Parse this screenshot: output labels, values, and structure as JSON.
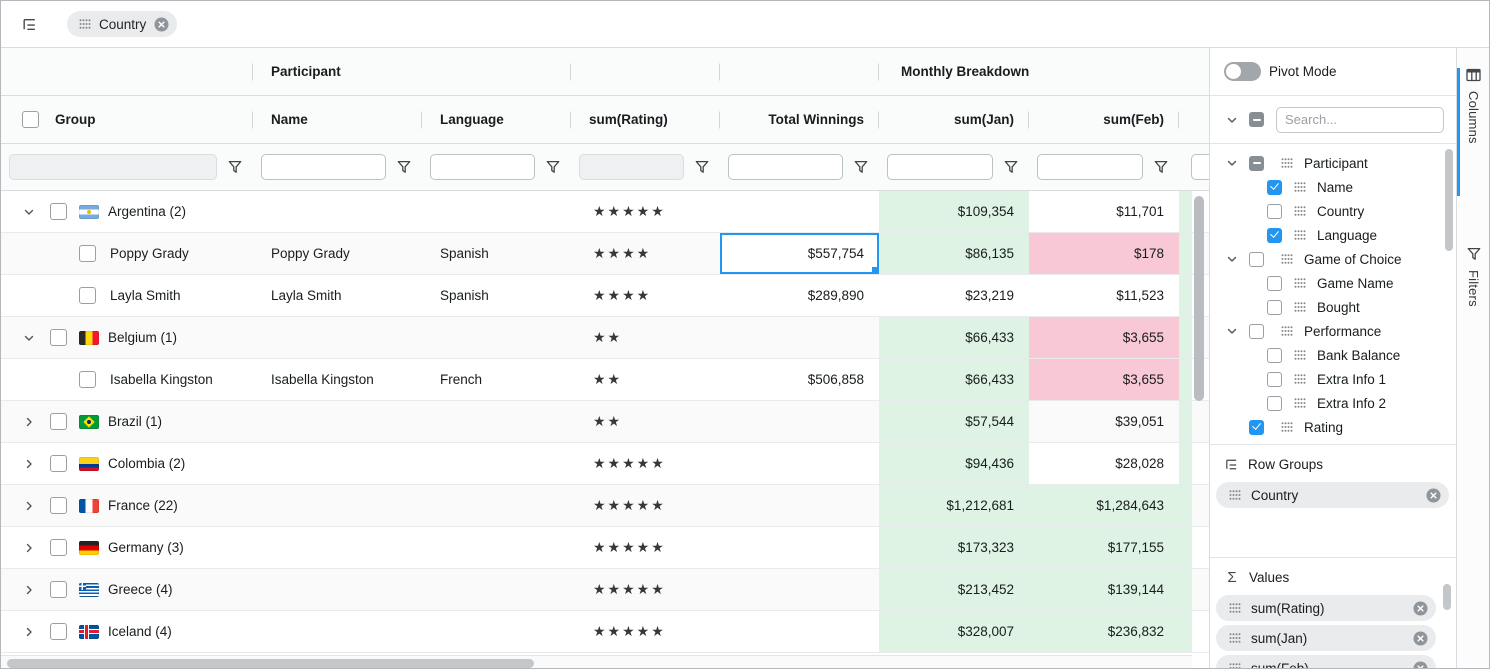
{
  "toolbar": {
    "group_chip": "Country"
  },
  "grid": {
    "group_headers": {
      "participant": "Participant",
      "monthly": "Monthly Breakdown"
    },
    "columns": {
      "group": "Group",
      "name": "Name",
      "language": "Language",
      "rating": "sum(Rating)",
      "total": "Total Winnings",
      "jan": "sum(Jan)",
      "feb": "sum(Feb)"
    },
    "rows": [
      {
        "type": "group",
        "expanded": true,
        "flag": "argentina",
        "label": "Argentina (2)",
        "stars": "★★★★★",
        "name": "",
        "language": "",
        "total": "",
        "jan": "$109,354",
        "feb": "$11,701",
        "jan_bg": "green",
        "feb_bg": "plain"
      },
      {
        "type": "child",
        "label": "Poppy Grady",
        "name": "Poppy Grady",
        "language": "Spanish",
        "stars": "★★★★",
        "total": "$557,754",
        "total_selected": true,
        "jan": "$86,135",
        "feb": "$178",
        "jan_bg": "green",
        "feb_bg": "pink"
      },
      {
        "type": "child",
        "label": "Layla Smith",
        "name": "Layla Smith",
        "language": "Spanish",
        "stars": "★★★★",
        "total": "$289,890",
        "jan": "$23,219",
        "feb": "$11,523",
        "jan_bg": "plain",
        "feb_bg": "plain"
      },
      {
        "type": "group",
        "expanded": true,
        "flag": "belgium",
        "label": "Belgium (1)",
        "stars": "★★",
        "name": "",
        "language": "",
        "total": "",
        "jan": "$66,433",
        "feb": "$3,655",
        "jan_bg": "green",
        "feb_bg": "pink"
      },
      {
        "type": "child",
        "label": "Isabella Kingston",
        "name": "Isabella Kingston",
        "language": "French",
        "stars": "★★",
        "total": "$506,858",
        "jan": "$66,433",
        "feb": "$3,655",
        "jan_bg": "green",
        "feb_bg": "pink"
      },
      {
        "type": "group",
        "expanded": false,
        "flag": "brazil",
        "label": "Brazil (1)",
        "stars": "★★",
        "name": "",
        "language": "",
        "total": "",
        "jan": "$57,544",
        "feb": "$39,051",
        "jan_bg": "green",
        "feb_bg": "plain"
      },
      {
        "type": "group",
        "expanded": false,
        "flag": "colombia",
        "label": "Colombia (2)",
        "stars": "★★★★★",
        "name": "",
        "language": "",
        "total": "",
        "jan": "$94,436",
        "feb": "$28,028",
        "jan_bg": "green",
        "feb_bg": "plain"
      },
      {
        "type": "group",
        "expanded": false,
        "flag": "france",
        "label": "France (22)",
        "stars": "★★★★★",
        "name": "",
        "language": "",
        "total": "",
        "jan": "$1,212,681",
        "feb": "$1,284,643",
        "jan_bg": "green",
        "feb_bg": "green"
      },
      {
        "type": "group",
        "expanded": false,
        "flag": "germany",
        "label": "Germany (3)",
        "stars": "★★★★★",
        "name": "",
        "language": "",
        "total": "",
        "jan": "$173,323",
        "feb": "$177,155",
        "jan_bg": "green",
        "feb_bg": "green"
      },
      {
        "type": "group",
        "expanded": false,
        "flag": "greece",
        "label": "Greece (4)",
        "stars": "★★★★★",
        "name": "",
        "language": "",
        "total": "",
        "jan": "$213,452",
        "feb": "$139,144",
        "jan_bg": "green",
        "feb_bg": "green"
      },
      {
        "type": "group",
        "expanded": false,
        "flag": "iceland",
        "label": "Iceland (4)",
        "stars": "★★★★★",
        "name": "",
        "language": "",
        "total": "",
        "jan": "$328,007",
        "feb": "$236,832",
        "jan_bg": "green",
        "feb_bg": "green"
      }
    ]
  },
  "sidebar": {
    "pivot_label": "Pivot Mode",
    "search_placeholder": "Search...",
    "tree": [
      {
        "level": 0,
        "group": true,
        "check": "ind",
        "label": "Participant"
      },
      {
        "level": 1,
        "group": false,
        "check": "checked",
        "label": "Name"
      },
      {
        "level": 1,
        "group": false,
        "check": "none",
        "label": "Country"
      },
      {
        "level": 1,
        "group": false,
        "check": "checked",
        "label": "Language"
      },
      {
        "level": 0,
        "group": true,
        "check": "none",
        "label": "Game of Choice"
      },
      {
        "level": 1,
        "group": false,
        "check": "none",
        "label": "Game Name"
      },
      {
        "level": 1,
        "group": false,
        "check": "none",
        "label": "Bought"
      },
      {
        "level": 0,
        "group": true,
        "check": "none",
        "label": "Performance"
      },
      {
        "level": 1,
        "group": false,
        "check": "none",
        "label": "Bank Balance"
      },
      {
        "level": 1,
        "group": false,
        "check": "none",
        "label": "Extra Info 1"
      },
      {
        "level": 1,
        "group": false,
        "check": "none",
        "label": "Extra Info 2"
      },
      {
        "level": 0,
        "group": false,
        "check": "checked",
        "label": "Rating"
      }
    ],
    "row_groups": {
      "title": "Row Groups",
      "chips": [
        "Country"
      ]
    },
    "values": {
      "title": "Values",
      "sigma": "Σ",
      "chips": [
        "sum(Rating)",
        "sum(Jan)",
        "sum(Feb)"
      ]
    }
  },
  "side_tabs": {
    "columns": "Columns",
    "filters": "Filters"
  },
  "colors": {
    "accent": "#2196f3",
    "value_green": "#def3e3",
    "value_pink": "#f8c8d6"
  }
}
